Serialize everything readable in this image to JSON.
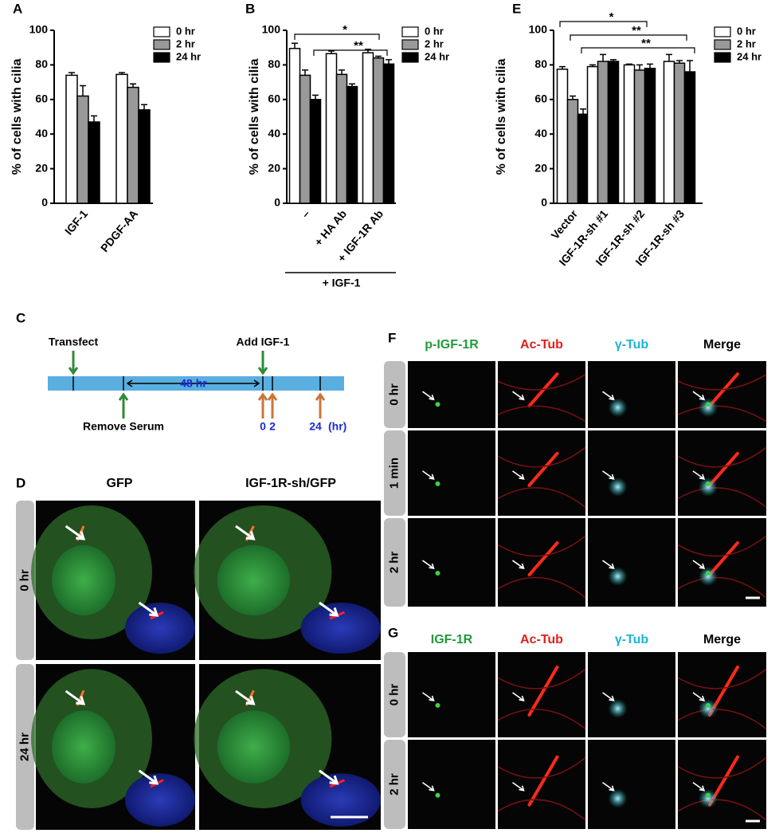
{
  "chart_data": [
    {
      "type": "bar",
      "panel": "A",
      "ylabel": "% of cells with cilia",
      "categories": [
        "IGF-1",
        "PDGF-AA"
      ],
      "series": [
        {
          "name": "0 hr",
          "color": "#ffffff",
          "values": [
            74,
            74.5
          ],
          "errors": [
            1.5,
            1
          ]
        },
        {
          "name": "2 hr",
          "color": "#999999",
          "values": [
            62,
            67
          ],
          "errors": [
            6,
            2
          ]
        },
        {
          "name": "24 hr",
          "color": "#000000",
          "values": [
            47,
            54
          ],
          "errors": [
            3.5,
            3
          ]
        }
      ],
      "ylim": [
        0,
        100
      ],
      "yticks": [
        0,
        20,
        40,
        60,
        80,
        100
      ]
    },
    {
      "type": "bar",
      "panel": "B",
      "ylabel": "% of cells with cilia",
      "categories": [
        "–",
        "+ HA Ab",
        "+ IGF-1R Ab"
      ],
      "group_label": "+ IGF-1",
      "series": [
        {
          "name": "0 hr",
          "color": "#ffffff",
          "values": [
            89.5,
            86.5,
            87
          ],
          "errors": [
            3,
            1.5,
            2
          ]
        },
        {
          "name": "2 hr",
          "color": "#999999",
          "values": [
            74,
            74.5,
            84
          ],
          "errors": [
            3,
            2.5,
            1
          ]
        },
        {
          "name": "24 hr",
          "color": "#000000",
          "values": [
            60,
            67.5,
            80.5
          ],
          "errors": [
            2.5,
            1.5,
            2.5
          ]
        }
      ],
      "significance": [
        "*",
        "**"
      ],
      "ylim": [
        0,
        100
      ],
      "yticks": [
        0,
        20,
        40,
        60,
        80,
        100
      ]
    },
    {
      "type": "bar",
      "panel": "E",
      "ylabel": "% of cells with cilia",
      "categories": [
        "Vector",
        "IGF-1R-sh #1",
        "IGF-1R-sh #2",
        "IGF-1R-sh #3"
      ],
      "series": [
        {
          "name": "0 hr",
          "color": "#ffffff",
          "values": [
            77.5,
            79,
            80,
            82
          ],
          "errors": [
            1.5,
            1,
            0.5,
            4
          ]
        },
        {
          "name": "2 hr",
          "color": "#999999",
          "values": [
            60,
            82,
            77,
            81
          ],
          "errors": [
            2,
            4,
            3,
            1.5
          ]
        },
        {
          "name": "24 hr",
          "color": "#000000",
          "values": [
            51.5,
            82,
            78,
            76
          ],
          "errors": [
            3,
            1,
            2.5,
            6.5
          ]
        }
      ],
      "significance": [
        "*",
        "**",
        "**"
      ],
      "ylim": [
        0,
        100
      ],
      "yticks": [
        0,
        20,
        40,
        60,
        80,
        100
      ]
    }
  ],
  "timeline": {
    "panel": "C",
    "transfect": "Transfect",
    "add": "Add IGF-1",
    "span": "48 hr",
    "remove": "Remove Serum",
    "points": [
      "0",
      "2",
      "24"
    ],
    "unit": "(hr)"
  },
  "panel_d": {
    "panel": "D",
    "columns": [
      "GFP",
      "IGF-1R-sh/GFP"
    ],
    "rows": [
      "0 hr",
      "24 hr"
    ]
  },
  "panel_f": {
    "panel": "F",
    "columns": [
      "p-IGF-1R",
      "Ac-Tub",
      "γ-Tub",
      "Merge"
    ],
    "rows": [
      "0 hr",
      "1 min",
      "2 hr"
    ]
  },
  "panel_g": {
    "panel": "G",
    "columns": [
      "IGF-1R",
      "Ac-Tub",
      "γ-Tub",
      "Merge"
    ],
    "rows": [
      "0 hr",
      "2 hr"
    ]
  }
}
